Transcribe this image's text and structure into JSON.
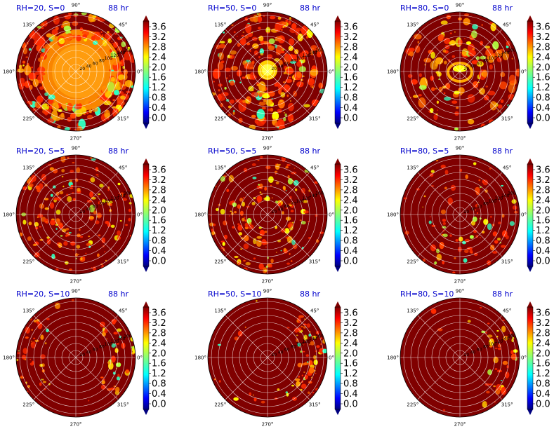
{
  "figure": {
    "colormap": "jet",
    "theta_ticks": [
      "90°",
      "45°",
      "0°",
      "315°",
      "270°",
      "225°",
      "180°",
      "135°"
    ],
    "radial_ticks": [
      "20",
      "40",
      "60",
      "80",
      "100",
      "120",
      "140",
      "160"
    ],
    "colorbar_ticks": [
      "3.6",
      "3.2",
      "2.8",
      "2.4",
      "2.0",
      "1.6",
      "1.2",
      "0.8",
      "0.4",
      "0.0"
    ],
    "colors": {
      "saturated": "#800000",
      "title_text": "#0000cc",
      "grid": "#ffffff"
    }
  },
  "chart_data": [
    {
      "type": "heatmap",
      "projection": "polar",
      "title": "RH=20, S=0",
      "time_label": "88 hr",
      "rh": 20,
      "s": 0,
      "colorbar_range": [
        0.0,
        3.6
      ]
    },
    {
      "type": "heatmap",
      "projection": "polar",
      "title": "RH=50, S=0",
      "time_label": "88 hr",
      "rh": 50,
      "s": 0,
      "colorbar_range": [
        0.0,
        3.6
      ]
    },
    {
      "type": "heatmap",
      "projection": "polar",
      "title": "RH=80, S=0",
      "time_label": "88 hr",
      "rh": 80,
      "s": 0,
      "colorbar_range": [
        0.0,
        3.6
      ]
    },
    {
      "type": "heatmap",
      "projection": "polar",
      "title": "RH=20, S=5",
      "time_label": "88 hr",
      "rh": 20,
      "s": 5,
      "colorbar_range": [
        0.0,
        3.6
      ]
    },
    {
      "type": "heatmap",
      "projection": "polar",
      "title": "RH=50, S=5",
      "time_label": "88 hr",
      "rh": 50,
      "s": 5,
      "colorbar_range": [
        0.0,
        3.6
      ]
    },
    {
      "type": "heatmap",
      "projection": "polar",
      "title": "RH=80, S=5",
      "time_label": "88 hr",
      "rh": 80,
      "s": 5,
      "colorbar_range": [
        0.0,
        3.6
      ]
    },
    {
      "type": "heatmap",
      "projection": "polar",
      "title": "RH=20, S=10",
      "time_label": "88 hr",
      "rh": 20,
      "s": 10,
      "colorbar_range": [
        0.0,
        3.6
      ]
    },
    {
      "type": "heatmap",
      "projection": "polar",
      "title": "RH=50, S=10",
      "time_label": "88 hr",
      "rh": 50,
      "s": 10,
      "colorbar_range": [
        0.0,
        3.6
      ]
    },
    {
      "type": "heatmap",
      "projection": "polar",
      "title": "RH=80, S=10",
      "time_label": "88 hr",
      "rh": 80,
      "s": 10,
      "colorbar_range": [
        0.0,
        3.6
      ]
    }
  ]
}
